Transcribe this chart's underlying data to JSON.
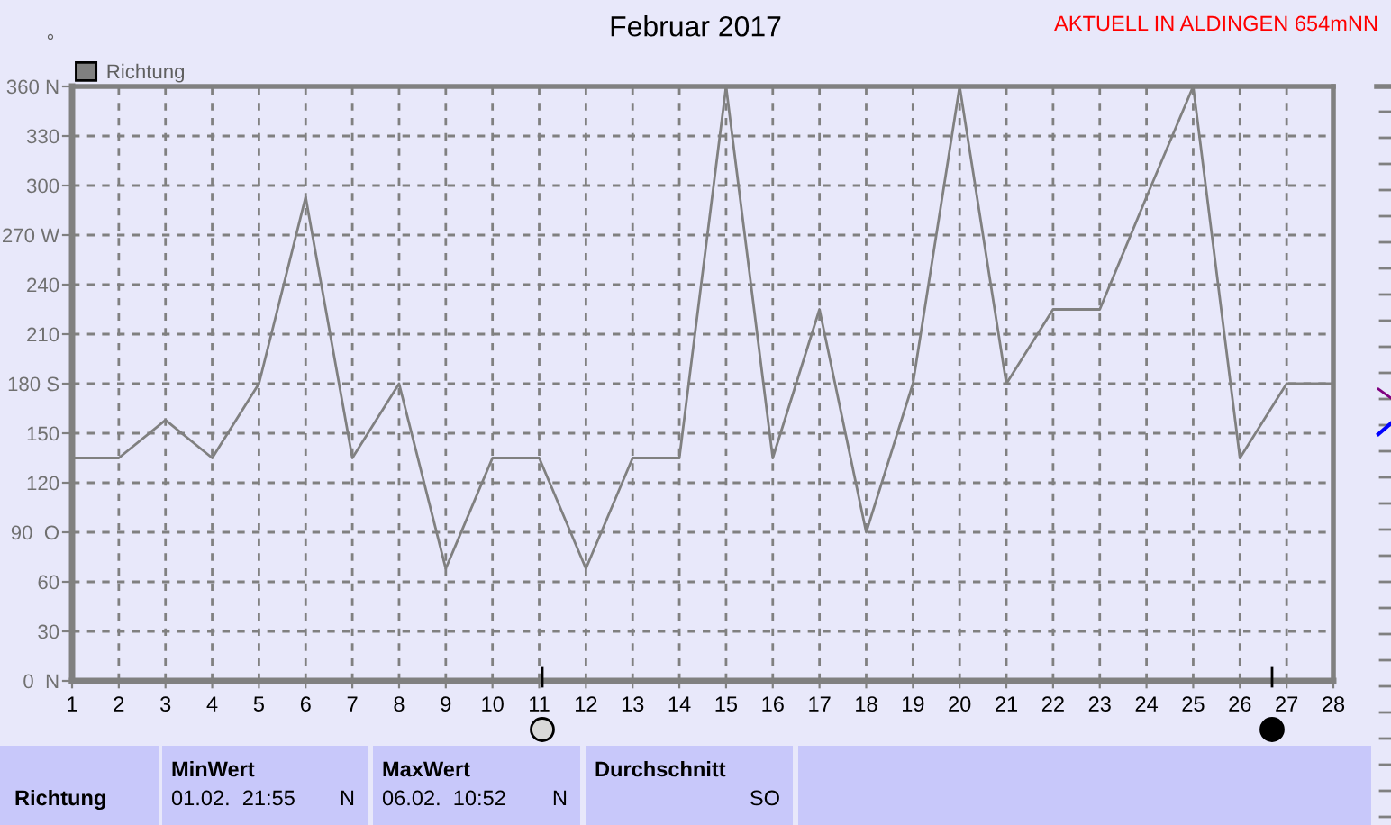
{
  "chart_data": {
    "type": "line",
    "title": "Februar 2017",
    "ylabel": "°",
    "x": [
      1,
      2,
      3,
      4,
      5,
      6,
      7,
      8,
      9,
      10,
      11,
      12,
      13,
      14,
      15,
      16,
      17,
      18,
      19,
      20,
      21,
      22,
      23,
      24,
      25,
      26,
      27,
      28
    ],
    "series": [
      {
        "name": "Richtung",
        "color": "#808080",
        "values": [
          135,
          135,
          158,
          135,
          180,
          293,
          135,
          180,
          68,
          135,
          135,
          68,
          135,
          135,
          360,
          135,
          225,
          90,
          180,
          360,
          180,
          225,
          225,
          293,
          360,
          135,
          180,
          180
        ]
      }
    ],
    "xlim": [
      1,
      28
    ],
    "xticks": [
      1,
      2,
      3,
      4,
      5,
      6,
      7,
      8,
      9,
      10,
      11,
      12,
      13,
      14,
      15,
      16,
      17,
      18,
      19,
      20,
      21,
      22,
      23,
      24,
      25,
      26,
      27,
      28
    ],
    "ylim": [
      0,
      360
    ],
    "yticks": [
      {
        "value": 0,
        "label": "0  N"
      },
      30,
      60,
      {
        "value": 90,
        "label": "90  O"
      },
      120,
      150,
      {
        "value": 180,
        "label": "180 S"
      },
      210,
      240,
      {
        "value": 270,
        "label": "270 W"
      },
      300,
      330,
      {
        "value": 360,
        "label": "360 N"
      }
    ],
    "grid": true,
    "legend": "top left",
    "marker": "none",
    "line_style": "solid",
    "annotations": [
      "AKTUELL IN ALDINGEN 654mNN",
      "Richtung",
      "MinWert",
      "01.02.  21:55",
      "N",
      "MaxWert",
      "06.02.  10:52",
      "N",
      "Durchschnitt",
      "SO"
    ]
  }
}
